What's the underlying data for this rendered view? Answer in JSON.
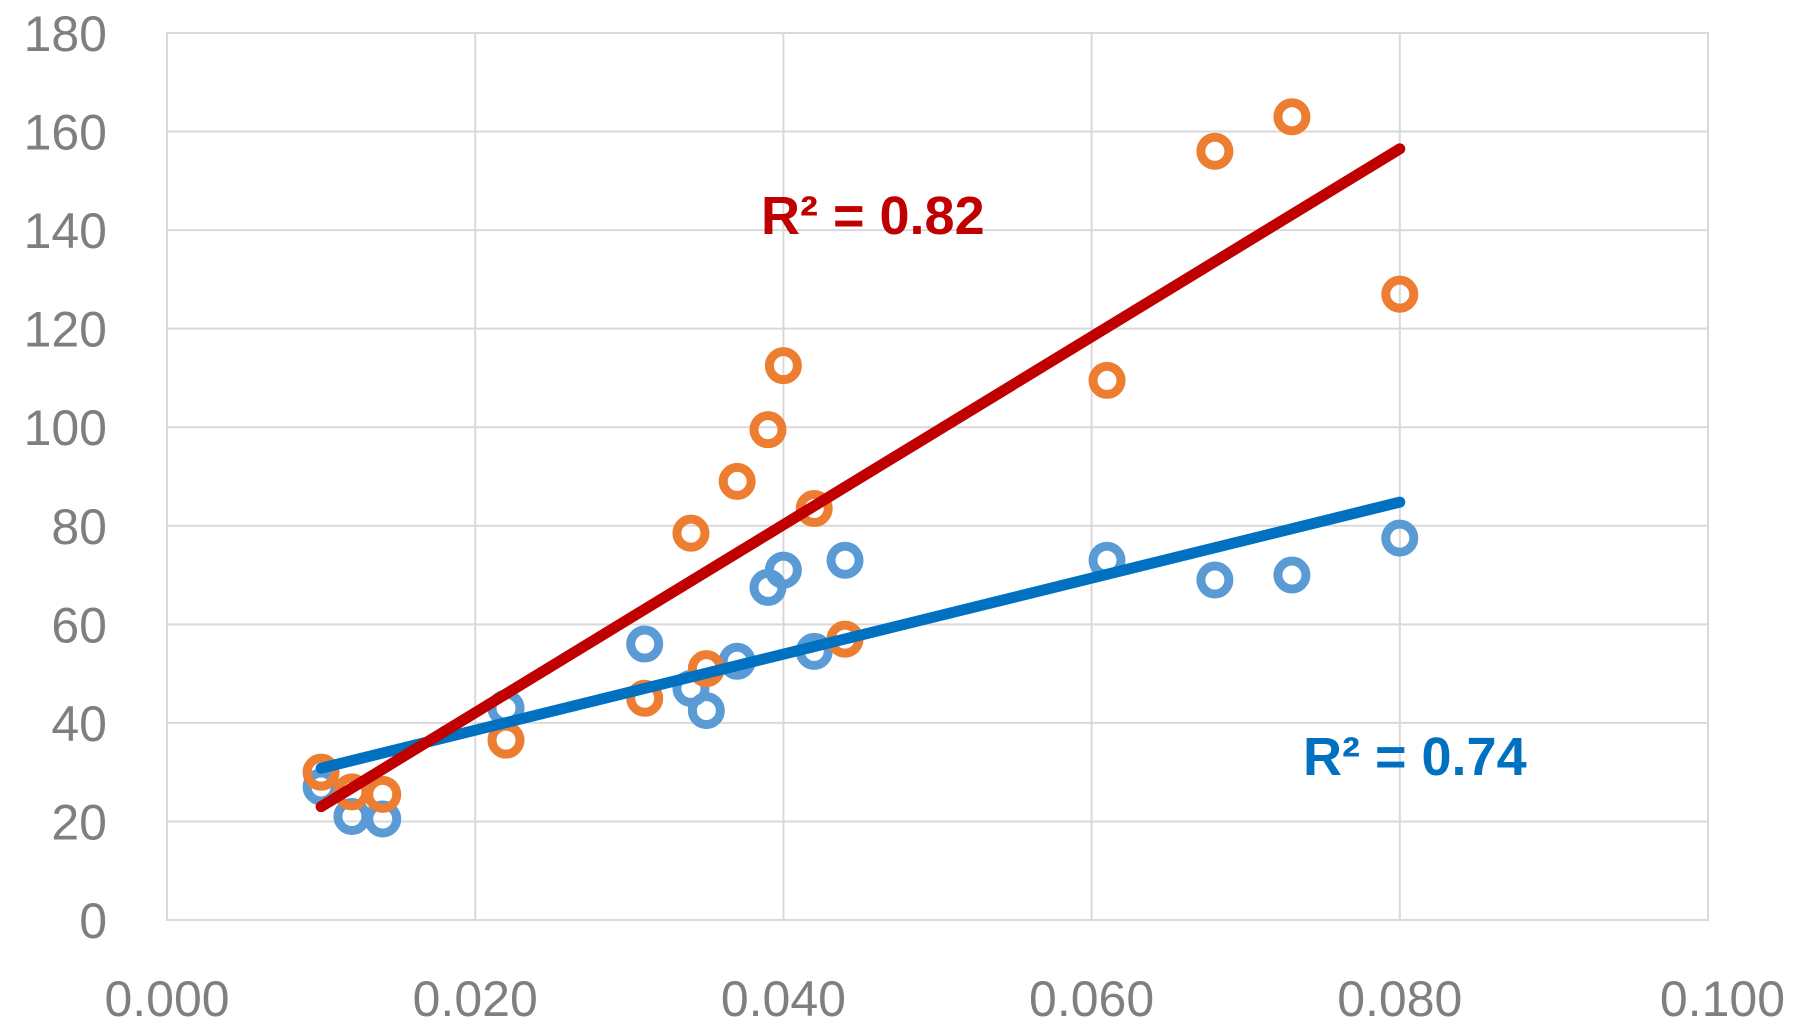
{
  "chart_data": {
    "type": "scatter",
    "title": "",
    "xlabel": "",
    "ylabel": "",
    "xlim": [
      0,
      0.1
    ],
    "ylim": [
      0,
      180
    ],
    "x_ticks": [
      "0.000",
      "0.020",
      "0.040",
      "0.060",
      "0.080",
      "0.100"
    ],
    "y_ticks": [
      "0",
      "20",
      "40",
      "60",
      "80",
      "100",
      "120",
      "140",
      "160",
      "180"
    ],
    "grid": true,
    "legend": "none",
    "series": [
      {
        "color": "#5b9bd5",
        "points": [
          [
            0.01,
            27
          ],
          [
            0.012,
            21
          ],
          [
            0.014,
            20.5
          ],
          [
            0.022,
            43
          ],
          [
            0.031,
            56
          ],
          [
            0.034,
            47
          ],
          [
            0.035,
            42.5
          ],
          [
            0.037,
            52.5
          ],
          [
            0.039,
            67.5
          ],
          [
            0.04,
            71
          ],
          [
            0.042,
            54.5
          ],
          [
            0.044,
            73
          ],
          [
            0.061,
            73
          ],
          [
            0.068,
            69
          ],
          [
            0.073,
            70
          ],
          [
            0.08,
            77.5
          ]
        ],
        "trendline": {
          "x": [
            0.01,
            0.08
          ],
          "y": [
            30.8,
            84.8
          ],
          "color": "#0070c0"
        },
        "annotation": "R² = 0.74"
      },
      {
        "color": "#ed7d31",
        "points": [
          [
            0.01,
            30
          ],
          [
            0.012,
            26
          ],
          [
            0.014,
            25.5
          ],
          [
            0.022,
            36.5
          ],
          [
            0.031,
            45
          ],
          [
            0.034,
            78.5
          ],
          [
            0.035,
            51
          ],
          [
            0.037,
            89
          ],
          [
            0.039,
            99.5
          ],
          [
            0.04,
            112.5
          ],
          [
            0.042,
            83.5
          ],
          [
            0.044,
            57
          ],
          [
            0.061,
            109.5
          ],
          [
            0.068,
            156
          ],
          [
            0.073,
            163
          ],
          [
            0.08,
            127
          ]
        ],
        "trendline": {
          "x": [
            0.01,
            0.08
          ],
          "y": [
            23,
            156.5
          ],
          "color": "#c00000"
        },
        "annotation": "R² = 0.82"
      }
    ],
    "annotation_colors": [
      "#c00000",
      "#0070c0"
    ]
  }
}
